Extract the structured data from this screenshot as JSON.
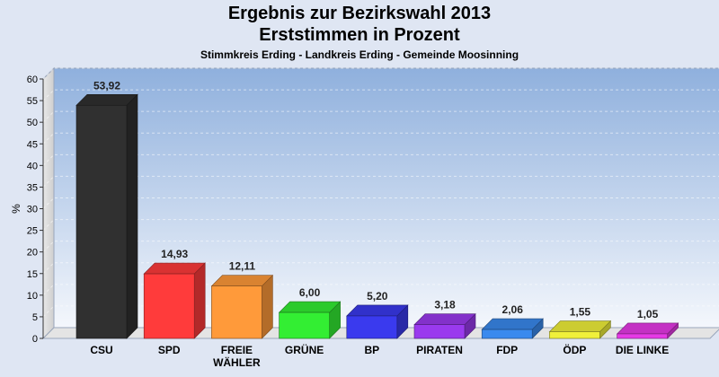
{
  "chart_data": {
    "type": "bar",
    "title": "Ergebnis zur Bezirkswahl 2013",
    "subtitle": "Erststimmen in Prozent",
    "subtitle2": "Stimmkreis Erding - Landkreis Erding - Gemeinde Moosinning",
    "ylabel": "%",
    "ylim": [
      0,
      60
    ],
    "yticks": [
      0,
      5,
      10,
      15,
      20,
      25,
      30,
      35,
      40,
      45,
      50,
      55,
      60
    ],
    "grid": true,
    "categories": [
      "CSU",
      "SPD",
      "FREIE WÄHLER",
      "GRÜNE",
      "BP",
      "PIRATEN",
      "FDP",
      "ÖDP",
      "DIE LINKE"
    ],
    "category_lines": [
      [
        "CSU"
      ],
      [
        "SPD"
      ],
      [
        "FREIE",
        "WÄHLER"
      ],
      [
        "GRÜNE"
      ],
      [
        "BP"
      ],
      [
        "PIRATEN"
      ],
      [
        "FDP"
      ],
      [
        "ÖDP"
      ],
      [
        "DIE LINKE"
      ]
    ],
    "values": [
      53.92,
      14.93,
      12.11,
      6.0,
      5.2,
      3.18,
      2.06,
      1.55,
      1.05
    ],
    "value_labels": [
      "53,92",
      "14,93",
      "12,11",
      "6,00",
      "5,20",
      "3,18",
      "2,06",
      "1,55",
      "1,05"
    ],
    "colors": [
      "#303030",
      "#ff3b3b",
      "#ff9a3a",
      "#33ee33",
      "#3a3aee",
      "#9a3aee",
      "#3a8aee",
      "#f0f03a",
      "#e63ae6"
    ]
  }
}
